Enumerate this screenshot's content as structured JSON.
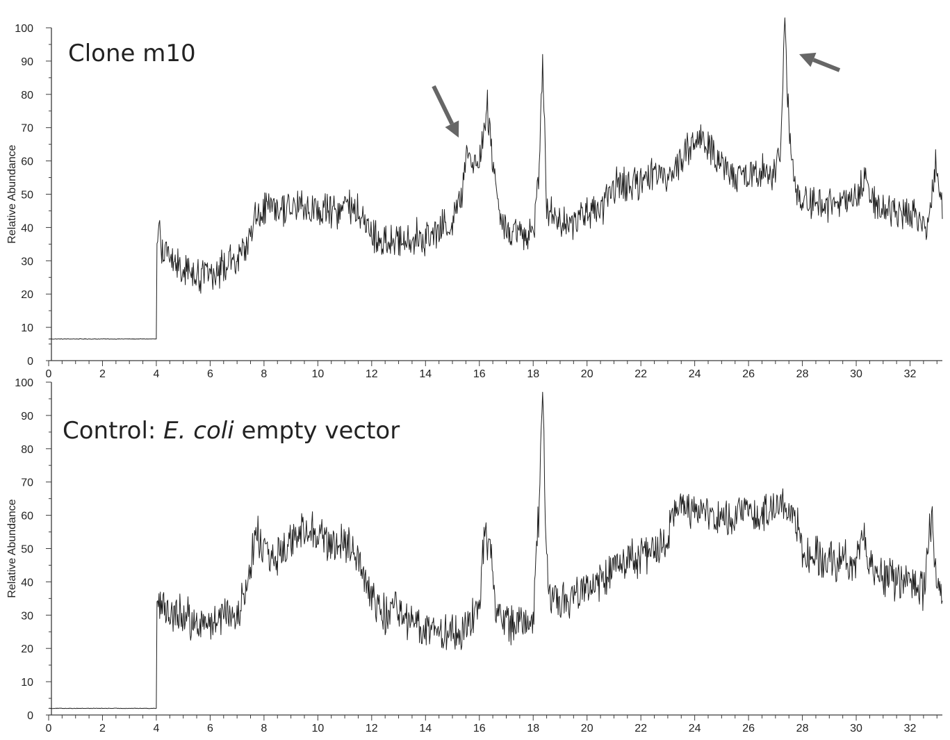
{
  "chart_data": [
    {
      "type": "line",
      "title_prefix": "Clone m10",
      "title_italic": "",
      "title_suffix": "",
      "xlabel": "",
      "ylabel": "Relative Abundance",
      "xlim": [
        0,
        33.2
      ],
      "ylim": [
        0,
        100
      ],
      "x_ticks": [
        0,
        2,
        4,
        6,
        8,
        10,
        12,
        14,
        16,
        18,
        20,
        22,
        24,
        26,
        28,
        30,
        32
      ],
      "y_ticks": [
        0,
        10,
        20,
        30,
        40,
        50,
        60,
        70,
        80,
        90,
        100
      ],
      "grid": false,
      "color": "#1e1e1e",
      "noise_amplitude": 9,
      "series": [
        {
          "x": [
            0,
            4.0,
            4.02,
            4.1,
            4.3,
            4.6,
            5.0,
            5.5,
            6.0,
            6.5,
            7.0,
            7.3,
            7.6,
            8.0,
            8.5,
            9.0,
            9.5,
            10.0,
            10.5,
            11.0,
            11.5,
            12.0,
            12.5,
            13.0,
            13.5,
            14.0,
            14.5,
            15.0,
            15.3,
            15.5,
            15.7,
            15.9,
            16.1,
            16.3,
            16.5,
            16.8,
            17.0,
            17.3,
            17.6,
            18.0,
            18.2,
            18.35,
            18.5,
            18.7,
            19.0,
            19.5,
            20.0,
            20.5,
            21.0,
            21.5,
            22.0,
            22.5,
            23.0,
            23.5,
            24.0,
            24.5,
            25.0,
            25.5,
            26.0,
            26.5,
            27.0,
            27.2,
            27.35,
            27.5,
            27.8,
            28.0,
            28.5,
            29.0,
            29.5,
            30.0,
            30.3,
            30.5,
            30.8,
            31.0,
            31.5,
            32.0,
            32.5,
            32.7,
            32.9,
            33.0,
            33.2
          ],
          "y": [
            6.5,
            6.5,
            35,
            37,
            32,
            30,
            28,
            26,
            27,
            28,
            30,
            32,
            42,
            46,
            45,
            46,
            46,
            45,
            44,
            47,
            45,
            38,
            35,
            36,
            37,
            37,
            39,
            42,
            48,
            63,
            62,
            58,
            65,
            77,
            60,
            42,
            40,
            38,
            38,
            39,
            55,
            92,
            48,
            43,
            41,
            42,
            44,
            45,
            53,
            53,
            53,
            57,
            56,
            60,
            67,
            64,
            59,
            55,
            56,
            57,
            56,
            65,
            103,
            70,
            50,
            47,
            48,
            47,
            48,
            48,
            55,
            50,
            47,
            46,
            44,
            45,
            43,
            38,
            58,
            60,
            45
          ]
        }
      ],
      "annotations": [
        "arrow near 15.3 min",
        "arrow near 27.35 min"
      ]
    },
    {
      "type": "line",
      "title_prefix": "Control: ",
      "title_italic": "E. coli",
      "title_suffix": " empty vector",
      "xlabel": "",
      "ylabel": "Relative Abundance",
      "xlim": [
        0,
        33.2
      ],
      "ylim": [
        0,
        100
      ],
      "x_ticks": [
        0,
        2,
        4,
        6,
        8,
        10,
        12,
        14,
        16,
        18,
        20,
        22,
        24,
        26,
        28,
        30,
        32
      ],
      "y_ticks": [
        0,
        10,
        20,
        30,
        40,
        50,
        60,
        70,
        80,
        90,
        100
      ],
      "grid": false,
      "color": "#1e1e1e",
      "noise_amplitude": 10,
      "series": [
        {
          "x": [
            0,
            4.0,
            4.02,
            4.1,
            4.5,
            5.0,
            5.5,
            6.0,
            6.5,
            7.0,
            7.4,
            7.7,
            8.0,
            8.5,
            9.0,
            9.5,
            10.0,
            10.5,
            11.0,
            11.5,
            12.0,
            12.5,
            13.0,
            13.5,
            14.0,
            14.5,
            15.0,
            15.5,
            16.0,
            16.2,
            16.4,
            16.6,
            16.8,
            17.2,
            17.6,
            18.0,
            18.2,
            18.35,
            18.5,
            18.7,
            19.0,
            19.5,
            20.0,
            20.5,
            21.0,
            21.5,
            22.0,
            22.5,
            23.0,
            23.2,
            23.5,
            24.0,
            24.5,
            25.0,
            25.5,
            26.0,
            26.5,
            27.0,
            27.4,
            27.8,
            28.0,
            28.5,
            29.0,
            29.5,
            30.0,
            30.3,
            30.5,
            31.0,
            31.5,
            32.0,
            32.5,
            32.8,
            33.0,
            33.2
          ],
          "y": [
            2,
            2,
            34,
            35,
            32,
            30,
            28,
            28,
            29,
            30,
            40,
            55,
            50,
            48,
            52,
            55,
            54,
            50,
            52,
            45,
            35,
            30,
            32,
            28,
            25,
            24,
            24,
            26,
            32,
            56,
            50,
            33,
            28,
            28,
            28,
            30,
            60,
            97,
            45,
            36,
            33,
            35,
            38,
            40,
            46,
            47,
            48,
            50,
            52,
            62,
            62,
            63,
            60,
            58,
            60,
            60,
            61,
            62,
            63,
            58,
            50,
            48,
            46,
            46,
            46,
            55,
            45,
            42,
            40,
            40,
            37,
            60,
            40,
            38
          ]
        }
      ]
    }
  ]
}
